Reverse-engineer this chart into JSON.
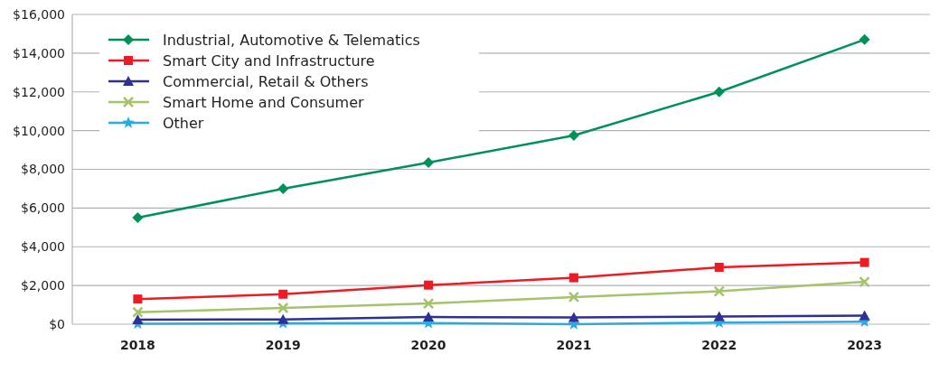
{
  "chart_data": {
    "type": "line",
    "categories": [
      "2018",
      "2019",
      "2020",
      "2021",
      "2022",
      "2023"
    ],
    "series": [
      {
        "name": "Industrial, Automotive & Telematics",
        "color": "#00915a",
        "marker": "diamond",
        "values": [
          5500,
          7000,
          8350,
          9750,
          12000,
          14700
        ]
      },
      {
        "name": "Smart City and Infrastructure",
        "color": "#ed1c24",
        "marker": "square",
        "values": [
          1300,
          1550,
          2020,
          2400,
          2940,
          3190
        ]
      },
      {
        "name": "Commercial, Retail & Others",
        "color": "#2e3192",
        "marker": "triangle",
        "values": [
          230,
          250,
          370,
          350,
          400,
          440
        ]
      },
      {
        "name": "Smart Home and Consumer",
        "color": "#a4c36a",
        "marker": "cross",
        "values": [
          620,
          840,
          1070,
          1400,
          1700,
          2190
        ]
      },
      {
        "name": "Other",
        "color": "#29abe2",
        "marker": "star",
        "values": [
          20,
          50,
          60,
          0,
          80,
          130
        ]
      }
    ],
    "ylim": [
      0,
      16000
    ],
    "yticks": [
      {
        "value": 0,
        "label": "$0"
      },
      {
        "value": 2000,
        "label": "$2,000"
      },
      {
        "value": 4000,
        "label": "$4,000"
      },
      {
        "value": 6000,
        "label": "$6,000"
      },
      {
        "value": 8000,
        "label": "$8,000"
      },
      {
        "value": 10000,
        "label": "$10,000"
      },
      {
        "value": 12000,
        "label": "$12,000"
      },
      {
        "value": 14000,
        "label": "$14,000"
      },
      {
        "value": 16000,
        "label": "$16,000"
      }
    ],
    "grid": "y",
    "legend": "top left",
    "line_style": "solid"
  }
}
